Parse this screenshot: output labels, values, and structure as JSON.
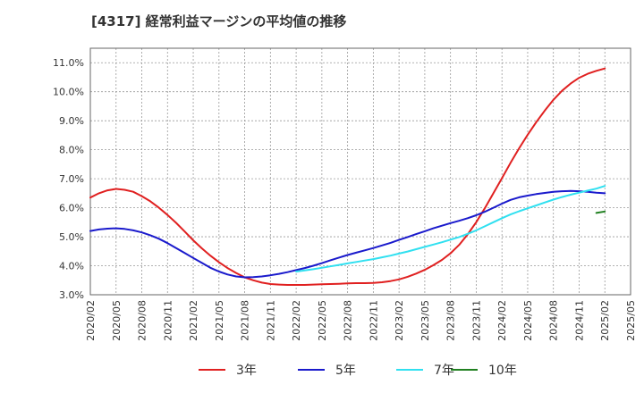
{
  "chart_data": {
    "type": "line",
    "title": "[4317]  経常利益マージンの平均値の推移",
    "xlabel": "",
    "ylabel": "",
    "x_ticks": [
      "2020/02",
      "2020/05",
      "2020/08",
      "2020/11",
      "2021/02",
      "2021/05",
      "2021/08",
      "2021/11",
      "2022/02",
      "2022/05",
      "2022/08",
      "2022/11",
      "2023/02",
      "2023/05",
      "2023/08",
      "2023/11",
      "2024/02",
      "2024/05",
      "2024/08",
      "2024/11",
      "2025/02",
      "2025/05"
    ],
    "y_ticks": [
      "3.0%",
      "4.0%",
      "5.0%",
      "6.0%",
      "7.0%",
      "8.0%",
      "9.0%",
      "10.0%",
      "11.0%"
    ],
    "ylim": [
      3.0,
      11.5
    ],
    "grid": true,
    "legend_position": "bottom",
    "colors": {
      "3年": "#e02020",
      "5年": "#1a1acc",
      "7年": "#30e0f0",
      "10年": "#208020"
    },
    "series": [
      {
        "name": "3年",
        "x": [
          "2020/02",
          "2020/03",
          "2020/04",
          "2020/05",
          "2020/06",
          "2020/07",
          "2020/08",
          "2020/09",
          "2020/10",
          "2020/11",
          "2020/12",
          "2021/01",
          "2021/02",
          "2021/03",
          "2021/04",
          "2021/05",
          "2021/06",
          "2021/07",
          "2021/08",
          "2021/09",
          "2021/10",
          "2021/11",
          "2021/12",
          "2022/01",
          "2022/02",
          "2022/03",
          "2022/04",
          "2022/05",
          "2022/06",
          "2022/07",
          "2022/08",
          "2022/09",
          "2022/10",
          "2022/11",
          "2022/12",
          "2023/01",
          "2023/02",
          "2023/03",
          "2023/04",
          "2023/05",
          "2023/06",
          "2023/07",
          "2023/08",
          "2023/09",
          "2023/10",
          "2023/11",
          "2023/12",
          "2024/01",
          "2024/02",
          "2024/03",
          "2024/04",
          "2024/05",
          "2024/06",
          "2024/07",
          "2024/08",
          "2024/09",
          "2024/10",
          "2024/11",
          "2024/12",
          "2025/01",
          "2025/02"
        ],
        "values": [
          6.35,
          6.5,
          6.6,
          6.65,
          6.62,
          6.55,
          6.4,
          6.22,
          6.0,
          5.75,
          5.48,
          5.18,
          4.88,
          4.6,
          4.35,
          4.12,
          3.92,
          3.75,
          3.6,
          3.5,
          3.42,
          3.37,
          3.35,
          3.34,
          3.34,
          3.34,
          3.35,
          3.36,
          3.37,
          3.38,
          3.39,
          3.4,
          3.4,
          3.41,
          3.43,
          3.47,
          3.53,
          3.62,
          3.73,
          3.86,
          4.02,
          4.2,
          4.43,
          4.72,
          5.08,
          5.5,
          5.98,
          6.5,
          7.02,
          7.55,
          8.05,
          8.52,
          8.95,
          9.35,
          9.72,
          10.03,
          10.28,
          10.48,
          10.62,
          10.72,
          10.8
        ]
      },
      {
        "name": "5年",
        "x": [
          "2020/02",
          "2020/03",
          "2020/04",
          "2020/05",
          "2020/06",
          "2020/07",
          "2020/08",
          "2020/09",
          "2020/10",
          "2020/11",
          "2020/12",
          "2021/01",
          "2021/02",
          "2021/03",
          "2021/04",
          "2021/05",
          "2021/06",
          "2021/07",
          "2021/08",
          "2021/09",
          "2021/10",
          "2021/11",
          "2021/12",
          "2022/01",
          "2022/02",
          "2022/03",
          "2022/04",
          "2022/05",
          "2022/06",
          "2022/07",
          "2022/08",
          "2022/09",
          "2022/10",
          "2022/11",
          "2022/12",
          "2023/01",
          "2023/02",
          "2023/03",
          "2023/04",
          "2023/05",
          "2023/06",
          "2023/07",
          "2023/08",
          "2023/09",
          "2023/10",
          "2023/11",
          "2023/12",
          "2024/01",
          "2024/02",
          "2024/03",
          "2024/04",
          "2024/05",
          "2024/06",
          "2024/07",
          "2024/08",
          "2024/09",
          "2024/10",
          "2024/11",
          "2024/12",
          "2025/01",
          "2025/02"
        ],
        "values": [
          5.2,
          5.25,
          5.28,
          5.29,
          5.27,
          5.22,
          5.15,
          5.05,
          4.93,
          4.78,
          4.61,
          4.44,
          4.27,
          4.1,
          3.93,
          3.8,
          3.7,
          3.63,
          3.6,
          3.61,
          3.63,
          3.67,
          3.72,
          3.78,
          3.85,
          3.92,
          4.0,
          4.09,
          4.19,
          4.28,
          4.37,
          4.45,
          4.53,
          4.61,
          4.7,
          4.79,
          4.89,
          4.99,
          5.09,
          5.19,
          5.29,
          5.38,
          5.47,
          5.55,
          5.64,
          5.74,
          5.86,
          6.0,
          6.14,
          6.27,
          6.36,
          6.42,
          6.47,
          6.51,
          6.55,
          6.57,
          6.58,
          6.57,
          6.55,
          6.52,
          6.5
        ]
      },
      {
        "name": "7年",
        "x": [
          "2022/02",
          "2022/03",
          "2022/04",
          "2022/05",
          "2022/06",
          "2022/07",
          "2022/08",
          "2022/09",
          "2022/10",
          "2022/11",
          "2022/12",
          "2023/01",
          "2023/02",
          "2023/03",
          "2023/04",
          "2023/05",
          "2023/06",
          "2023/07",
          "2023/08",
          "2023/09",
          "2023/10",
          "2023/11",
          "2023/12",
          "2024/01",
          "2024/02",
          "2024/03",
          "2024/04",
          "2024/05",
          "2024/06",
          "2024/07",
          "2024/08",
          "2024/09",
          "2024/10",
          "2024/11",
          "2024/12",
          "2025/01",
          "2025/02"
        ],
        "values": [
          3.8,
          3.84,
          3.88,
          3.93,
          3.98,
          4.03,
          4.08,
          4.13,
          4.18,
          4.23,
          4.29,
          4.35,
          4.42,
          4.49,
          4.57,
          4.65,
          4.73,
          4.81,
          4.9,
          4.99,
          5.1,
          5.22,
          5.36,
          5.5,
          5.64,
          5.77,
          5.88,
          5.98,
          6.08,
          6.18,
          6.28,
          6.37,
          6.45,
          6.52,
          6.59,
          6.66,
          6.75
        ]
      },
      {
        "name": "10年",
        "x": [
          "2025/01",
          "2025/02"
        ],
        "values": [
          5.82,
          5.87
        ]
      }
    ]
  }
}
